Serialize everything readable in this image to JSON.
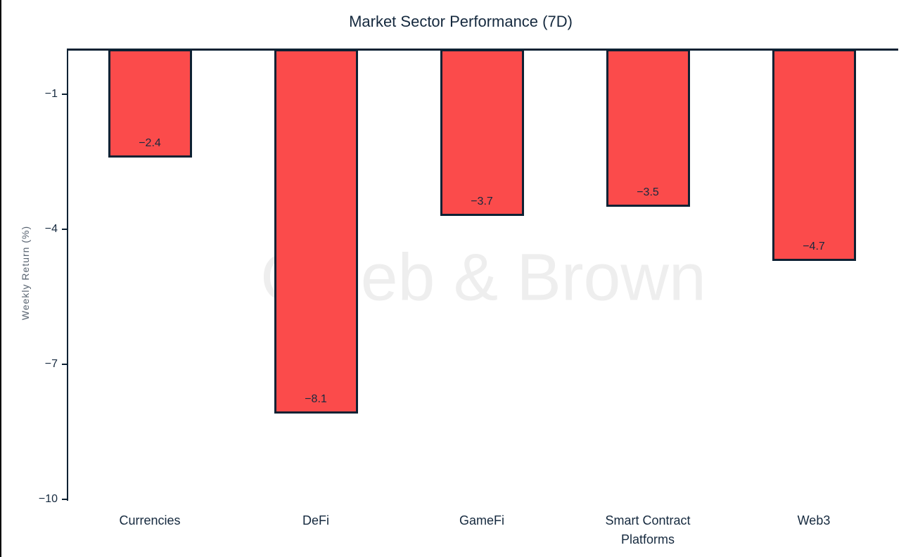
{
  "chart_data": {
    "type": "bar",
    "title": "Market Sector Performance (7D)",
    "xlabel": "",
    "ylabel": "Weekly Return (%)",
    "categories": [
      "Currencies",
      "DeFi",
      "GameFi",
      "Smart Contract Platforms",
      "Web3"
    ],
    "values": [
      -2.4,
      -8.1,
      -3.7,
      -3.5,
      -4.7
    ],
    "bar_labels": [
      "−2.4",
      "−8.1",
      "−3.7",
      "−3.5",
      "−4.7"
    ],
    "yticks": [
      -1,
      -4,
      -7,
      -10
    ],
    "ytick_labels": [
      "−1",
      "−4",
      "−7",
      "−10"
    ],
    "ylim": [
      -10,
      0
    ],
    "grid": false,
    "legend": "none",
    "bar_color": "#fb4b4b",
    "bar_border_color": "#0d2133",
    "axis_color": "#0d2133",
    "text_color": "#15293e",
    "ylabel_color": "#596471"
  },
  "watermark": {
    "text": "Caleb & Brown",
    "color": "#eeeeee"
  }
}
